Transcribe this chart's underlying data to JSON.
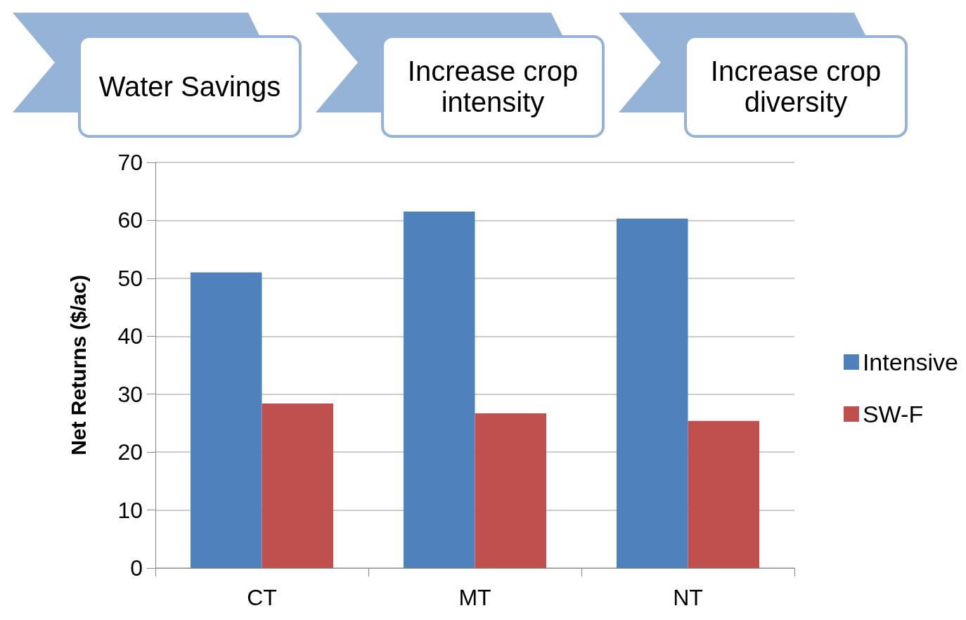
{
  "chart_data": {
    "type": "bar",
    "annotations": [
      "Water Savings",
      "Increase crop intensity",
      "Increase crop diversity"
    ],
    "ylabel": "Net Returns ($/ac)",
    "categories": [
      "CT",
      "MT",
      "NT"
    ],
    "series": [
      {
        "name": "Intensive",
        "color": "#4f81bd",
        "values": [
          51,
          61.5,
          60.3
        ]
      },
      {
        "name": "SW-F",
        "color": "#c0504d",
        "values": [
          28.4,
          26.7,
          25.4
        ]
      }
    ],
    "ylim": [
      0,
      70
    ],
    "yticks": [
      0,
      10,
      20,
      30,
      40,
      50,
      60,
      70
    ],
    "grid": "y",
    "legend": "right"
  }
}
